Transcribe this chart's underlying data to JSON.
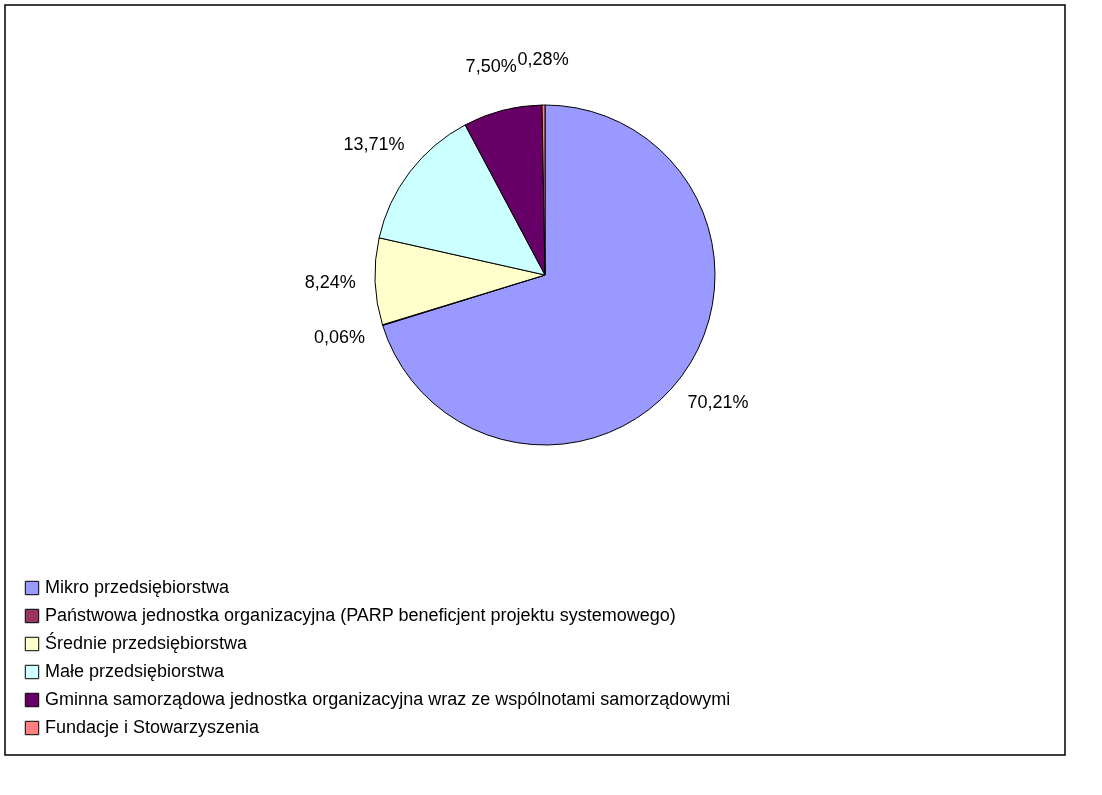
{
  "chart_data": {
    "type": "pie",
    "categories": [
      "Mikro przedsiębiorstwa",
      "Państwowa jednostka organizacyjna (PARP beneficjent projektu systemowego)",
      "Średnie przedsiębiorstwa",
      "Małe przedsiębiorstwa",
      "Gminna samorządowa jednostka organizacyjna wraz ze wspólnotami samorządowymi",
      "Fundacje i Stowarzyszenia"
    ],
    "values": [
      70.21,
      0.06,
      8.24,
      13.71,
      7.5,
      0.28
    ],
    "value_labels": [
      "70,21%",
      "0,06%",
      "8,24%",
      "13,71%",
      "7,50%",
      "0,28%"
    ],
    "colors": [
      "#9999ff",
      "#993366",
      "#ffffcc",
      "#ccffff",
      "#660066",
      "#ff8080"
    ],
    "legend": "bottom left"
  }
}
